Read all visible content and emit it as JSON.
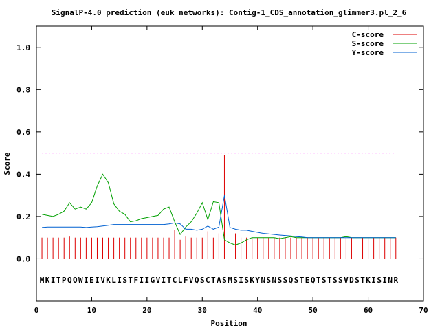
{
  "chart_data": {
    "type": "line",
    "title": "SignalP-4.0 prediction (euk networks): Contig-1_CDS_annotation_glimmer3.pl_2_6",
    "xlabel": "Position",
    "ylabel": "Score",
    "xlim": [
      0,
      70
    ],
    "ylim": [
      -0.2,
      1.1
    ],
    "xticks": [
      "0",
      "10",
      "20",
      "30",
      "40",
      "50",
      "60",
      "70"
    ],
    "yticks": [
      "0.0",
      "0.2",
      "0.4",
      "0.6",
      "0.8",
      "1.0"
    ],
    "xtick_values": [
      0,
      10,
      20,
      30,
      40,
      50,
      60,
      70
    ],
    "ytick_values": [
      0.0,
      0.2,
      0.4,
      0.6,
      0.8,
      1.0
    ],
    "grid": false,
    "legend_position": "top-right",
    "threshold": 0.5,
    "sequence": "MKITPQQWIEIVKLISTFIIGVITCLFVQSCTASMSISKYNSNSSQSTEQTSTSSVDSTKISINR",
    "sequence_y": -0.1,
    "series": [
      {
        "name": "C-score",
        "color": "#dd0000",
        "style": "impulses",
        "values": [
          0.1,
          0.1,
          0.1,
          0.1,
          0.1,
          0.105,
          0.1,
          0.1,
          0.1,
          0.1,
          0.1,
          0.1,
          0.1,
          0.1,
          0.1,
          0.1,
          0.1,
          0.1,
          0.1,
          0.1,
          0.1,
          0.1,
          0.1,
          0.1,
          0.135,
          0.09,
          0.105,
          0.1,
          0.1,
          0.1,
          0.13,
          0.1,
          0.12,
          0.49,
          0.13,
          0.12,
          0.1,
          0.1,
          0.1,
          0.1,
          0.1,
          0.1,
          0.1,
          0.1,
          0.1,
          0.1,
          0.1,
          0.1,
          0.1,
          0.1,
          0.1,
          0.1,
          0.1,
          0.1,
          0.1,
          0.1,
          0.1,
          0.1,
          0.1,
          0.1,
          0.1,
          0.1,
          0.1,
          0.1,
          0.1
        ]
      },
      {
        "name": "S-score",
        "color": "#00a000",
        "style": "line",
        "values": [
          0.21,
          0.205,
          0.2,
          0.21,
          0.225,
          0.265,
          0.235,
          0.245,
          0.235,
          0.265,
          0.345,
          0.4,
          0.36,
          0.26,
          0.225,
          0.21,
          0.175,
          0.18,
          0.19,
          0.195,
          0.2,
          0.205,
          0.235,
          0.245,
          0.175,
          0.115,
          0.15,
          0.175,
          0.215,
          0.265,
          0.185,
          0.27,
          0.265,
          0.09,
          0.075,
          0.065,
          0.075,
          0.09,
          0.1,
          0.1,
          0.1,
          0.1,
          0.1,
          0.095,
          0.1,
          0.105,
          0.1,
          0.1,
          0.1,
          0.1,
          0.1,
          0.1,
          0.1,
          0.1,
          0.1,
          0.105,
          0.1,
          0.1,
          0.1,
          0.1,
          0.1,
          0.1,
          0.1,
          0.1,
          0.1
        ]
      },
      {
        "name": "Y-score",
        "color": "#0060d0",
        "style": "line",
        "values": [
          0.148,
          0.15,
          0.15,
          0.15,
          0.15,
          0.15,
          0.15,
          0.15,
          0.148,
          0.15,
          0.152,
          0.155,
          0.158,
          0.162,
          0.162,
          0.162,
          0.162,
          0.162,
          0.162,
          0.162,
          0.162,
          0.162,
          0.162,
          0.165,
          0.17,
          0.165,
          0.14,
          0.14,
          0.135,
          0.14,
          0.155,
          0.14,
          0.15,
          0.3,
          0.148,
          0.14,
          0.135,
          0.135,
          0.13,
          0.125,
          0.12,
          0.118,
          0.115,
          0.112,
          0.11,
          0.108,
          0.105,
          0.103,
          0.1,
          0.1,
          0.1,
          0.1,
          0.1,
          0.1,
          0.1,
          0.1,
          0.1,
          0.1,
          0.1,
          0.1,
          0.1,
          0.1,
          0.1,
          0.1,
          0.1
        ]
      }
    ]
  }
}
